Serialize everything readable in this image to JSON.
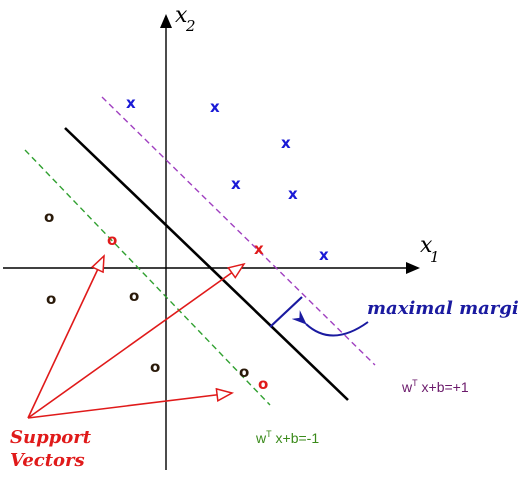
{
  "axes": {
    "x_label": "x",
    "x_sub": "1",
    "y_label": "x",
    "y_sub": "2"
  },
  "labels": {
    "margin": "maximal margin",
    "support_line1": "Support",
    "support_line2": "Vectors",
    "eq_pos_prefix": "w",
    "eq_pos_sup": "T",
    "eq_pos_rest": " x+b=+1",
    "eq_neg_prefix": "w",
    "eq_neg_sup": "T",
    "eq_neg_rest": " x+b=-1"
  },
  "points": {
    "x_symbol": "x",
    "o_symbol": "o"
  },
  "colors": {
    "positive_class": "#1a1ad6",
    "negative_class": "#2a1a0a",
    "support_vector": "#e01a1a",
    "positive_margin": "#a040c0",
    "negative_margin": "#30a030",
    "margin_arrow": "#1a1aa0"
  }
}
